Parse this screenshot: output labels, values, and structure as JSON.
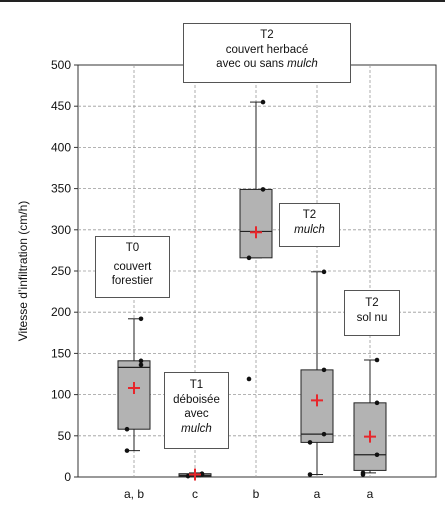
{
  "chart_data": {
    "type": "box",
    "ylabel": "Vitesse d’infiltration (cm/h)",
    "ylim": [
      0,
      500
    ],
    "yticks": [
      0,
      50,
      100,
      150,
      200,
      250,
      300,
      350,
      400,
      450,
      500
    ],
    "grid": true,
    "categories": [
      "a, b",
      "c",
      "b",
      "a",
      "a"
    ],
    "boxes": [
      {
        "q1": 58,
        "median": 133,
        "q3": 141,
        "whisker_low": 32,
        "whisker_high": 192,
        "mean": 108,
        "points": [
          32,
          58,
          136,
          141,
          192
        ]
      },
      {
        "q1": 1,
        "median": 2,
        "q3": 4,
        "whisker_low": 0,
        "whisker_high": 5,
        "mean": 3,
        "points": [
          1,
          3,
          4
        ]
      },
      {
        "q1": 266,
        "median": 298,
        "q3": 349,
        "whisker_low": 266,
        "whisker_high": 455,
        "mean": 297,
        "points": [
          119,
          266,
          349,
          455
        ]
      },
      {
        "q1": 42,
        "median": 52,
        "q3": 130,
        "whisker_low": 3,
        "whisker_high": 249,
        "mean": 93,
        "points": [
          3,
          42,
          52,
          130,
          249
        ]
      },
      {
        "q1": 8,
        "median": 27,
        "q3": 90,
        "whisker_low": 5,
        "whisker_high": 142,
        "mean": 49,
        "points": [
          3,
          5,
          27,
          90,
          142
        ]
      }
    ],
    "colors": {
      "box": "#b3b3b3",
      "mean_marker": "#e8262b",
      "points": "#111111"
    }
  },
  "annotations": {
    "t0": {
      "line1": "T0",
      "line2": "couvert",
      "line3": "forestier"
    },
    "t1": {
      "line1": "T1",
      "line2": "déboisée",
      "line3": "avec",
      "line4": "mulch"
    },
    "t2_top": {
      "line1": "T2",
      "line2": "couvert herbacé",
      "line3": "avec ou sans ",
      "line3_italic": "mulch"
    },
    "t2_mulch": {
      "line1": "T2",
      "line2": "mulch"
    },
    "t2_solnu": {
      "line1": "T2",
      "line2": "sol nu"
    }
  }
}
